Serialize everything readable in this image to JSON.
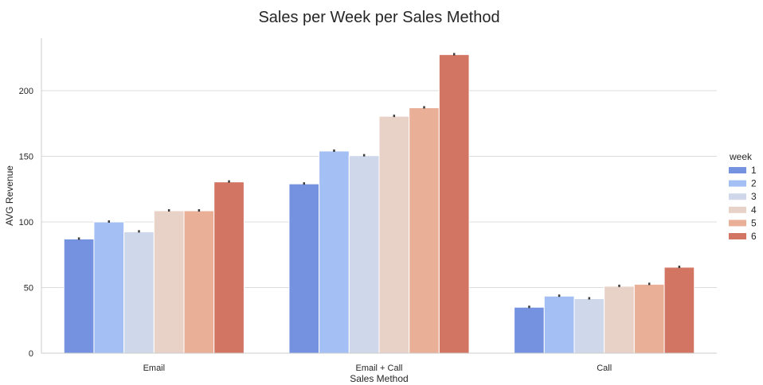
{
  "chart_data": {
    "type": "bar",
    "title": "Sales per Week per Sales Method",
    "xlabel": "Sales Method",
    "ylabel": "AVG Revenue",
    "categories": [
      "Email",
      "Email + Call",
      "Call"
    ],
    "yticks": [
      0,
      50,
      100,
      150,
      200
    ],
    "ylim": [
      0,
      240
    ],
    "grid": "horizontal",
    "legend": {
      "title": "week",
      "placement": "right"
    },
    "series": [
      {
        "name": "1",
        "color": "#7592e1",
        "values": [
          87,
          129,
          35
        ]
      },
      {
        "name": "2",
        "color": "#a4bff4",
        "values": [
          100,
          154,
          43.5
        ]
      },
      {
        "name": "3",
        "color": "#cfd8ea",
        "values": [
          92.5,
          150.5,
          41.5
        ]
      },
      {
        "name": "4",
        "color": "#e8d1c6",
        "values": [
          108.5,
          180.5,
          51
        ]
      },
      {
        "name": "5",
        "color": "#eaaf97",
        "values": [
          108.5,
          187,
          52.5
        ]
      },
      {
        "name": "6",
        "color": "#d27663",
        "values": [
          130.5,
          227.5,
          65.5
        ]
      }
    ]
  }
}
